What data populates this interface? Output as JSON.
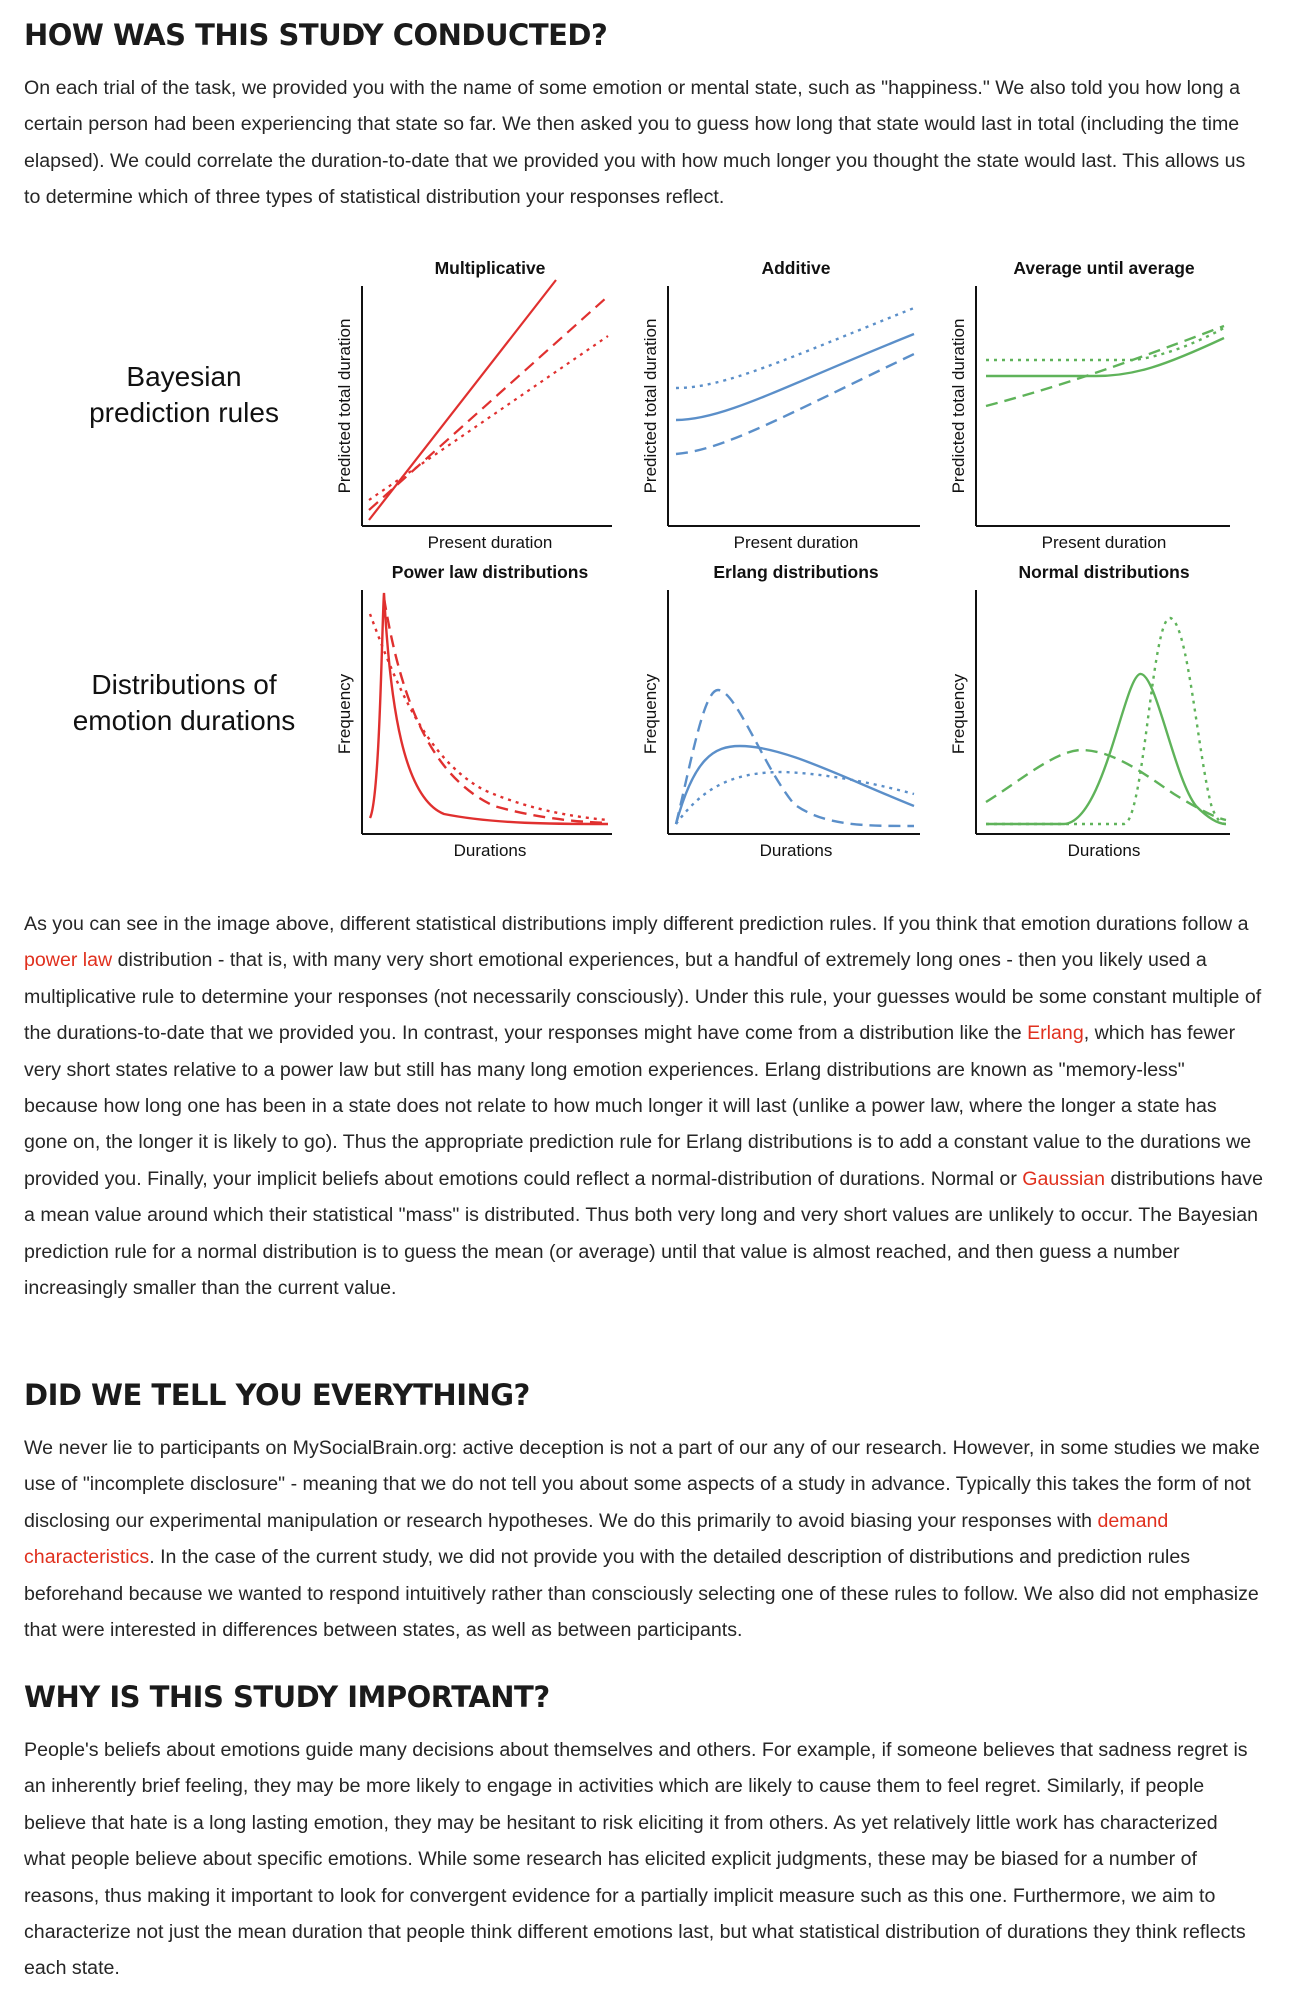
{
  "sections": {
    "conducted": {
      "heading": "HOW WAS THIS STUDY CONDUCTED?",
      "paragraph": "On each trial of the task, we provided you with the name of some emotion or mental state, such as \"happiness.\" We also told you how long a certain person had been experiencing that state so far. We then asked you to guess how long that state would last in total (including the time elapsed). We could correlate the duration-to-date that we provided you with how much longer you thought the state would last. This allows us to determine which of three types of statistical distribution your responses reflect."
    },
    "explanation": {
      "p_a": "As you can see in the image above, different statistical distributions imply different prediction rules. If you think that emotion durations follow a ",
      "link_power_law": "power law",
      "p_b": " distribution - that is, with many very short emotional experiences, but a handful of extremely long ones - then you likely used a multiplicative rule to determine your responses (not necessarily consciously). Under this rule, your guesses would be some constant multiple of the durations-to-date that we provided you. In contrast, your responses might have come from a distribution like the ",
      "link_erlang": "Erlang",
      "p_c": ", which has fewer very short states relative to a power law but still has many long emotion experiences. Erlang distributions are known as \"memory-less\" because how long one has been in a state does not relate to how much longer it will last (unlike a power law, where the longer a state has gone on, the longer it is likely to go). Thus the appropriate prediction rule for Erlang distributions is to add a constant value to the durations we provided you. Finally, your implicit beliefs about emotions could reflect a normal-distribution of durations. Normal or ",
      "link_gaussian": "Gaussian",
      "p_d": " distributions have a mean value around which their statistical \"mass\" is distributed. Thus both very long and very short values are unlikely to occur. The Bayesian prediction rule for a normal distribution is to guess the mean (or average) until that value is almost reached, and then guess a number increasingly smaller than the current value."
    },
    "everything": {
      "heading": "DID WE TELL YOU EVERYTHING?",
      "p_a": "We never lie to participants on MySocialBrain.org: active deception is not a part of our any of our research. However, in some studies we make use of \"incomplete disclosure\" - meaning that we do not tell you about some aspects of a study in advance. Typically this takes the form of not disclosing our experimental manipulation or research hypotheses. We do this primarily to avoid biasing your responses with ",
      "link_demand": "demand characteristics",
      "p_b": ". In the case of the current study, we did not provide you with the detailed description of distributions and prediction rules beforehand because we wanted to respond intuitively rather than consciously selecting one of these rules to follow. We also did not emphasize that were interested in differences between states, as well as between participants."
    },
    "important": {
      "heading": "WHY IS THIS STUDY IMPORTANT?",
      "paragraph": "People's beliefs about emotions guide many decisions about themselves and others. For example, if someone believes that sadness regret is an inherently brief feeling, they may be more likely to engage in activities which are likely to cause them to feel regret. Similarly, if people believe that hate is a long lasting emotion, they may be hesitant to risk eliciting it from others. As yet relatively little work has characterized what people believe about specific emotions. While some research has elicited explicit judgments, these may be biased for a number of reasons, thus making it important to look for convergent evidence for a partially implicit measure such as this one. Furthermore, we aim to characterize not just the mean duration that people think different emotions last, but what statistical distribution of durations they think reflects each state."
    }
  },
  "figure": {
    "row_label_top_line1": "Bayesian",
    "row_label_top_line2": "prediction rules",
    "row_label_bottom_line1": "Distributions of",
    "row_label_bottom_line2": "emotion durations",
    "colors": {
      "red": "#e0302f",
      "blue": "#5b8fc9",
      "green": "#5fb35a"
    },
    "prediction_panels": [
      {
        "title": "Multiplicative",
        "ylabel": "Predicted total duration",
        "xlabel": "Present duration"
      },
      {
        "title": "Additive",
        "ylabel": "Predicted total duration",
        "xlabel": "Present duration"
      },
      {
        "title": "Average until average",
        "ylabel": "Predicted total duration",
        "xlabel": "Present duration"
      }
    ],
    "distribution_panels": [
      {
        "title": "Power law distributions",
        "ylabel": "Frequency",
        "xlabel": "Durations"
      },
      {
        "title": "Erlang distributions",
        "ylabel": "Frequency",
        "xlabel": "Durations"
      },
      {
        "title": "Normal distributions",
        "ylabel": "Frequency",
        "xlabel": "Durations"
      }
    ]
  }
}
